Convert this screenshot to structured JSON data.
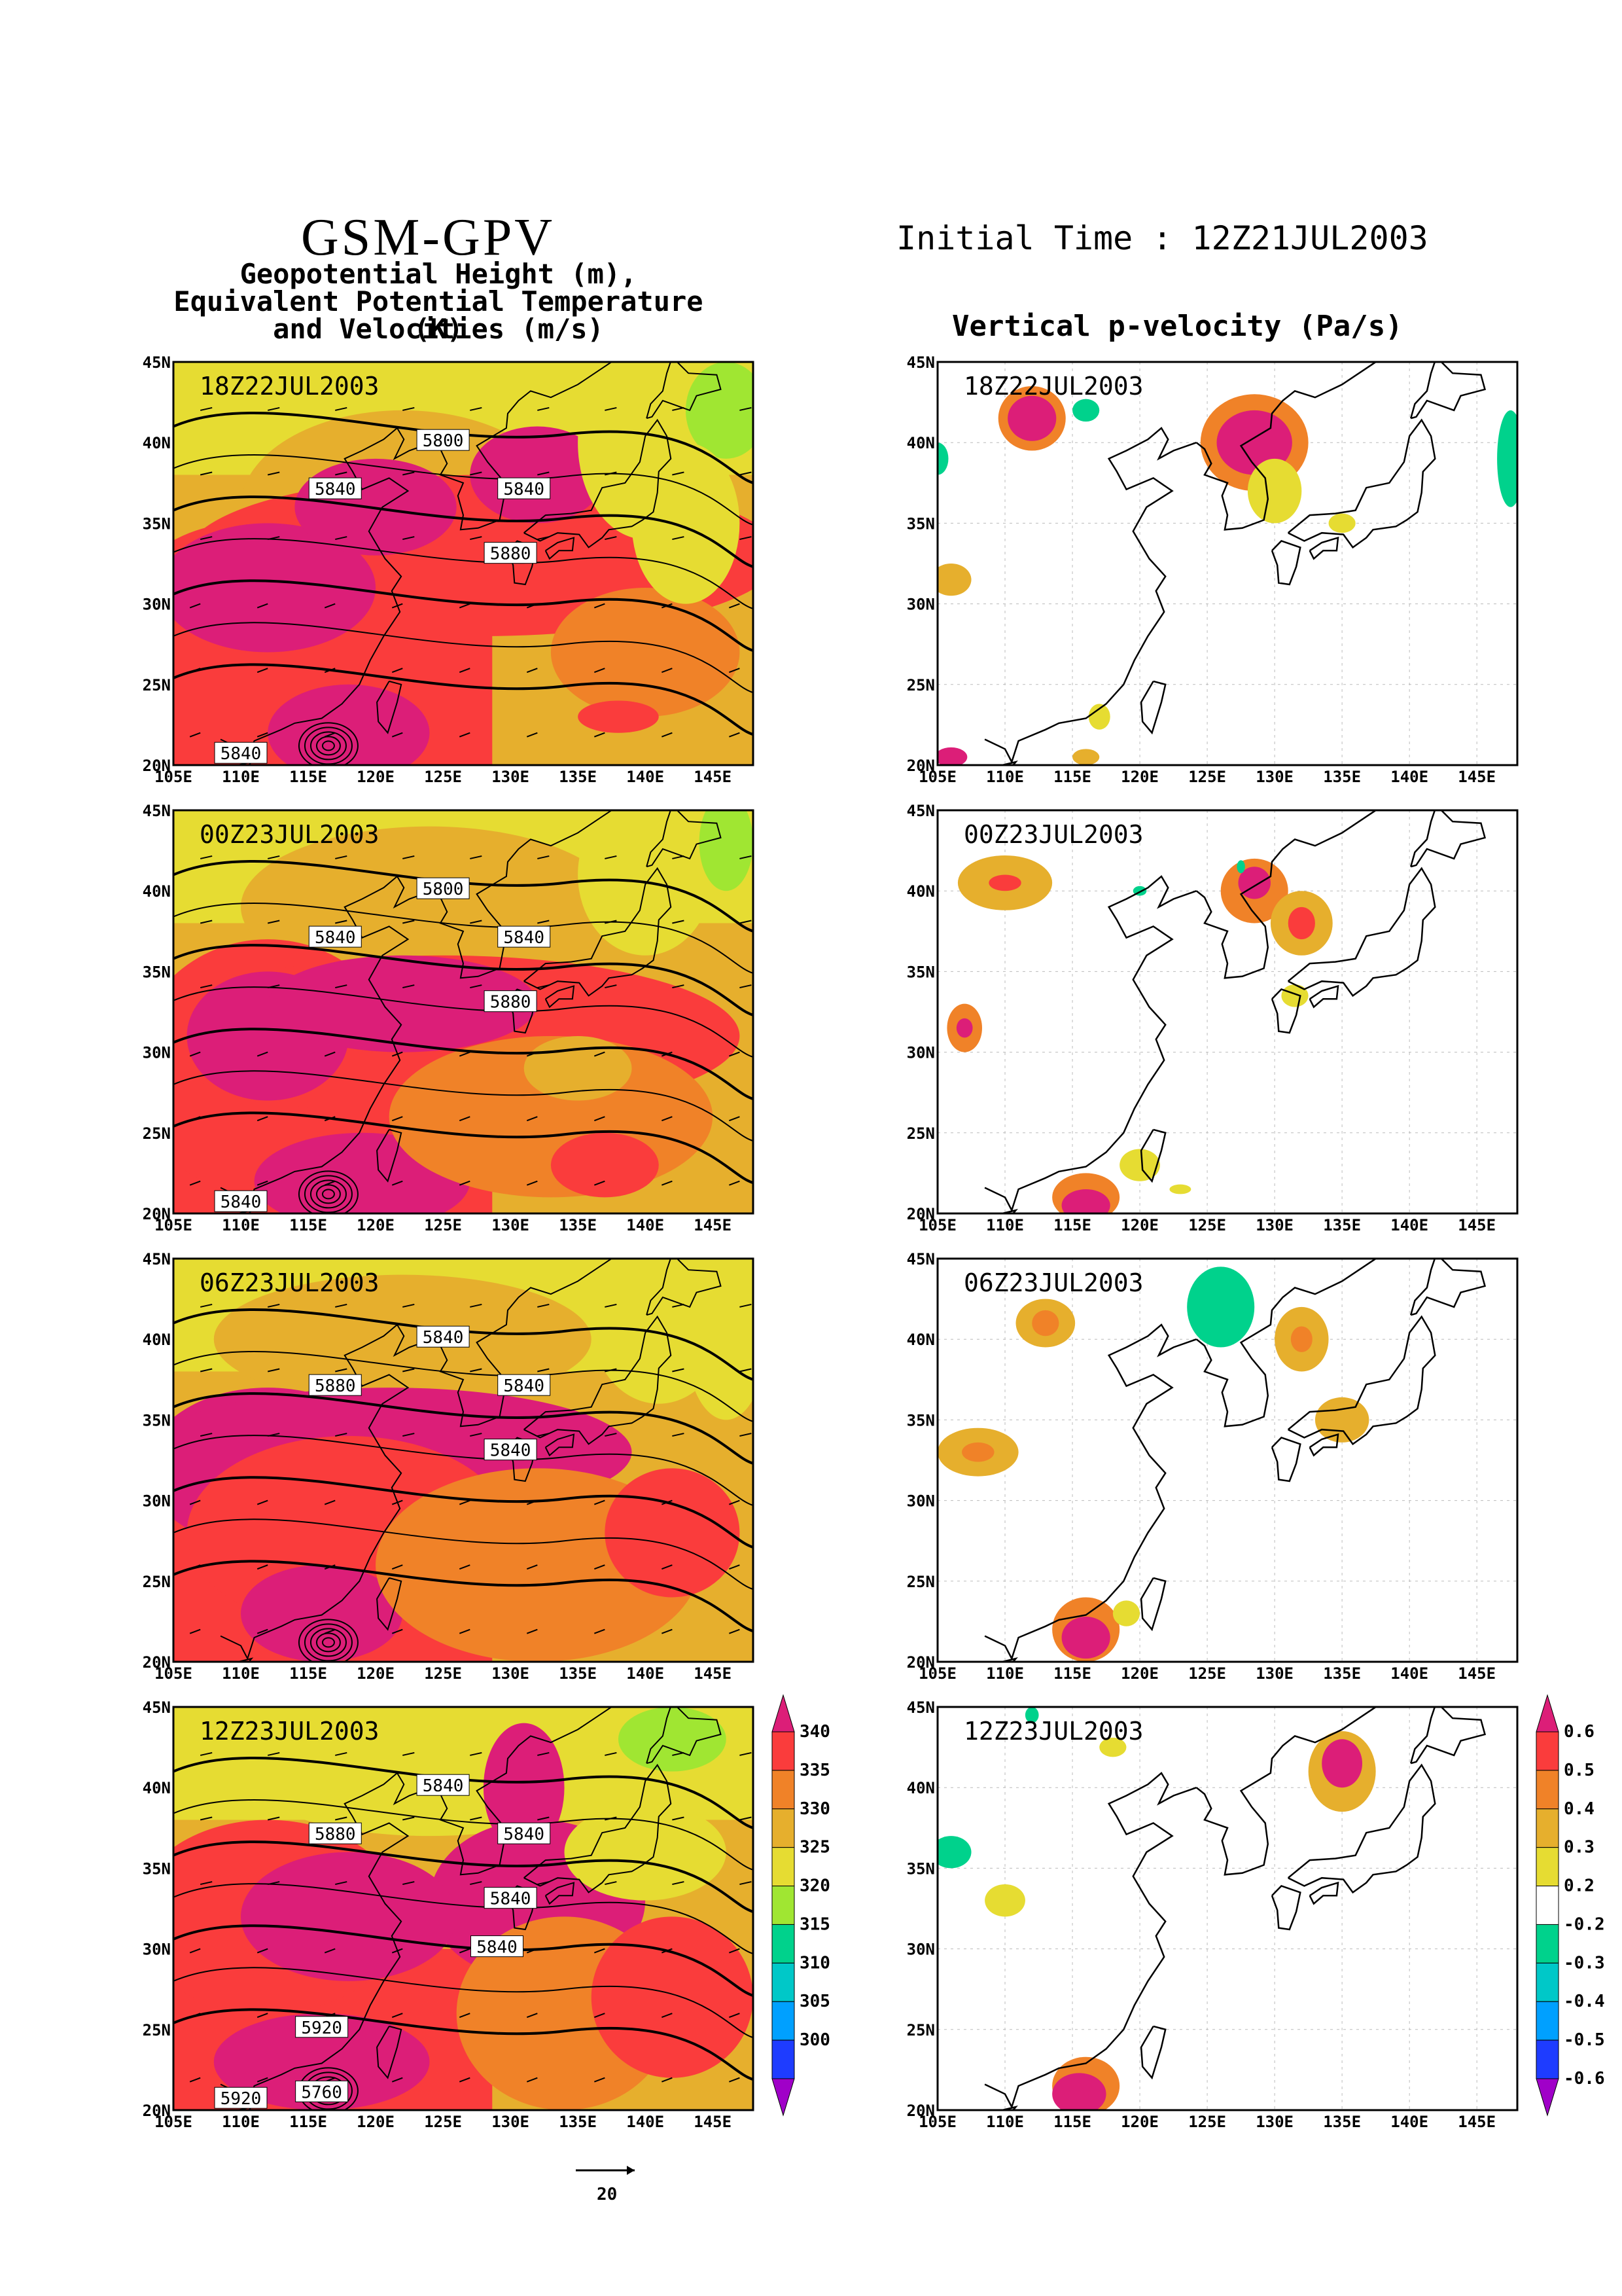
{
  "header": {
    "main_title": "GSM-GPV",
    "left_subtitle_1": "Geopotential Height (m),",
    "left_subtitle_2": "Equivalent Potential Temperature (K)",
    "left_subtitle_3": "and Velocities (m/s)",
    "initial_time": "Initial Time : 12Z21JUL2003",
    "right_title": "Vertical p-velocity (Pa/s)"
  },
  "axes": {
    "lon_labels": [
      "105E",
      "110E",
      "115E",
      "120E",
      "125E",
      "130E",
      "135E",
      "140E",
      "145E"
    ],
    "lat_labels": [
      "20N",
      "25N",
      "30N",
      "35N",
      "40N",
      "45N"
    ],
    "lon_values": [
      105,
      110,
      115,
      120,
      125,
      130,
      135,
      140,
      145
    ],
    "lat_values": [
      20,
      25,
      30,
      35,
      40,
      45
    ],
    "lon_range": [
      105,
      148
    ],
    "lat_range": [
      20,
      45
    ]
  },
  "panels": {
    "times": [
      "18Z22JUL2003",
      "00Z23JUL2003",
      "06Z23JUL2003",
      "12Z23JUL2003"
    ],
    "height_labels": [
      [
        "5800",
        "5840",
        "5840",
        "5880",
        "5840"
      ],
      [
        "5800",
        "5840",
        "5840",
        "5880",
        "5840"
      ],
      [
        "5840",
        "5880",
        "5840",
        "5840"
      ],
      [
        "5840",
        "5880",
        "5840",
        "5840",
        "5920",
        "5840",
        "5920",
        "5760"
      ]
    ]
  },
  "colors": {
    "theta_e": [
      "#a000c8",
      "#1e3cff",
      "#00a0ff",
      "#00c8c8",
      "#00d28c",
      "#a0e632",
      "#e6dc32",
      "#e6af2d",
      "#f08228",
      "#fa3c3c",
      "#dc1e78"
    ],
    "omega": [
      "#a000c8",
      "#1e3cff",
      "#00a0ff",
      "#00c8c8",
      "#00d28c",
      "#ffffff",
      "#e6dc32",
      "#e6af2d",
      "#f08228",
      "#fa3c3c",
      "#dc1e78"
    ]
  },
  "theta_colorbar": {
    "labels": [
      "340",
      "335",
      "330",
      "325",
      "320",
      "315",
      "310",
      "305",
      "300"
    ]
  },
  "omega_colorbar": {
    "labels": [
      "0.6",
      "0.5",
      "0.4",
      "0.3",
      "0.2",
      "-0.2",
      "-0.3",
      "-0.4",
      "-0.5",
      "-0.6"
    ]
  },
  "vector_reference": {
    "value": "20"
  }
}
